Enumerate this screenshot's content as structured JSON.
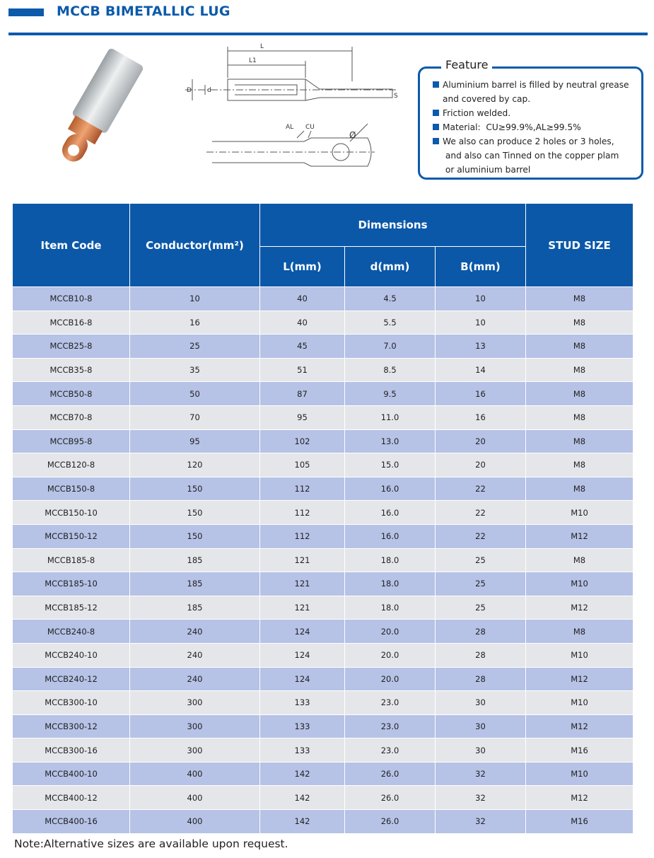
{
  "header": {
    "title": "MCCB BIMETALLIC LUG"
  },
  "drawing": {
    "labels": {
      "L": "L",
      "L1": "L1",
      "D": "D",
      "d": "d",
      "S": "S",
      "AL": "AL",
      "CU": "CU",
      "phi": "Ø"
    }
  },
  "feature": {
    "title": "Feature",
    "items": [
      "Aluminium barrel is filled by neutral grease\nand covered by cap.",
      "Friction welded.",
      "Material:  CU≥99.9%,AL≥99.5%",
      "We also can produce 2 holes or 3 holes,\n and also can Tinned on the copper plam\n or aluminium barrel"
    ]
  },
  "table": {
    "headers": {
      "item_code": "Item Code",
      "conductor": "Conductor(mm²)",
      "dimensions": "Dimensions",
      "l": "L(mm)",
      "d": "d(mm)",
      "b": "B(mm)",
      "stud": "STUD SIZE"
    },
    "rows": [
      [
        "MCCB10-8",
        "10",
        "40",
        "4.5",
        "10",
        "M8"
      ],
      [
        "MCCB16-8",
        "16",
        "40",
        "5.5",
        "10",
        "M8"
      ],
      [
        "MCCB25-8",
        "25",
        "45",
        "7.0",
        "13",
        "M8"
      ],
      [
        "MCCB35-8",
        "35",
        "51",
        "8.5",
        "14",
        "M8"
      ],
      [
        "MCCB50-8",
        "50",
        "87",
        "9.5",
        "16",
        "M8"
      ],
      [
        "MCCB70-8",
        "70",
        "95",
        "11.0",
        "16",
        "M8"
      ],
      [
        "MCCB95-8",
        "95",
        "102",
        "13.0",
        "20",
        "M8"
      ],
      [
        "MCCB120-8",
        "120",
        "105",
        "15.0",
        "20",
        "M8"
      ],
      [
        "MCCB150-8",
        "150",
        "112",
        "16.0",
        "22",
        "M8"
      ],
      [
        "MCCB150-10",
        "150",
        "112",
        "16.0",
        "22",
        "M10"
      ],
      [
        "MCCB150-12",
        "150",
        "112",
        "16.0",
        "22",
        "M12"
      ],
      [
        "MCCB185-8",
        "185",
        "121",
        "18.0",
        "25",
        "M8"
      ],
      [
        "MCCB185-10",
        "185",
        "121",
        "18.0",
        "25",
        "M10"
      ],
      [
        "MCCB185-12",
        "185",
        "121",
        "18.0",
        "25",
        "M12"
      ],
      [
        "MCCB240-8",
        "240",
        "124",
        "20.0",
        "28",
        "M8"
      ],
      [
        "MCCB240-10",
        "240",
        "124",
        "20.0",
        "28",
        "M10"
      ],
      [
        "MCCB240-12",
        "240",
        "124",
        "20.0",
        "28",
        "M12"
      ],
      [
        "MCCB300-10",
        "300",
        "133",
        "23.0",
        "30",
        "M10"
      ],
      [
        "MCCB300-12",
        "300",
        "133",
        "23.0",
        "30",
        "M12"
      ],
      [
        "MCCB300-16",
        "300",
        "133",
        "23.0",
        "30",
        "M16"
      ],
      [
        "MCCB400-10",
        "400",
        "142",
        "26.0",
        "32",
        "M10"
      ],
      [
        "MCCB400-12",
        "400",
        "142",
        "26.0",
        "32",
        "M12"
      ],
      [
        "MCCB400-16",
        "400",
        "142",
        "26.0",
        "32",
        "M16"
      ]
    ]
  },
  "note": "Note:Alternative sizes are available upon request."
}
